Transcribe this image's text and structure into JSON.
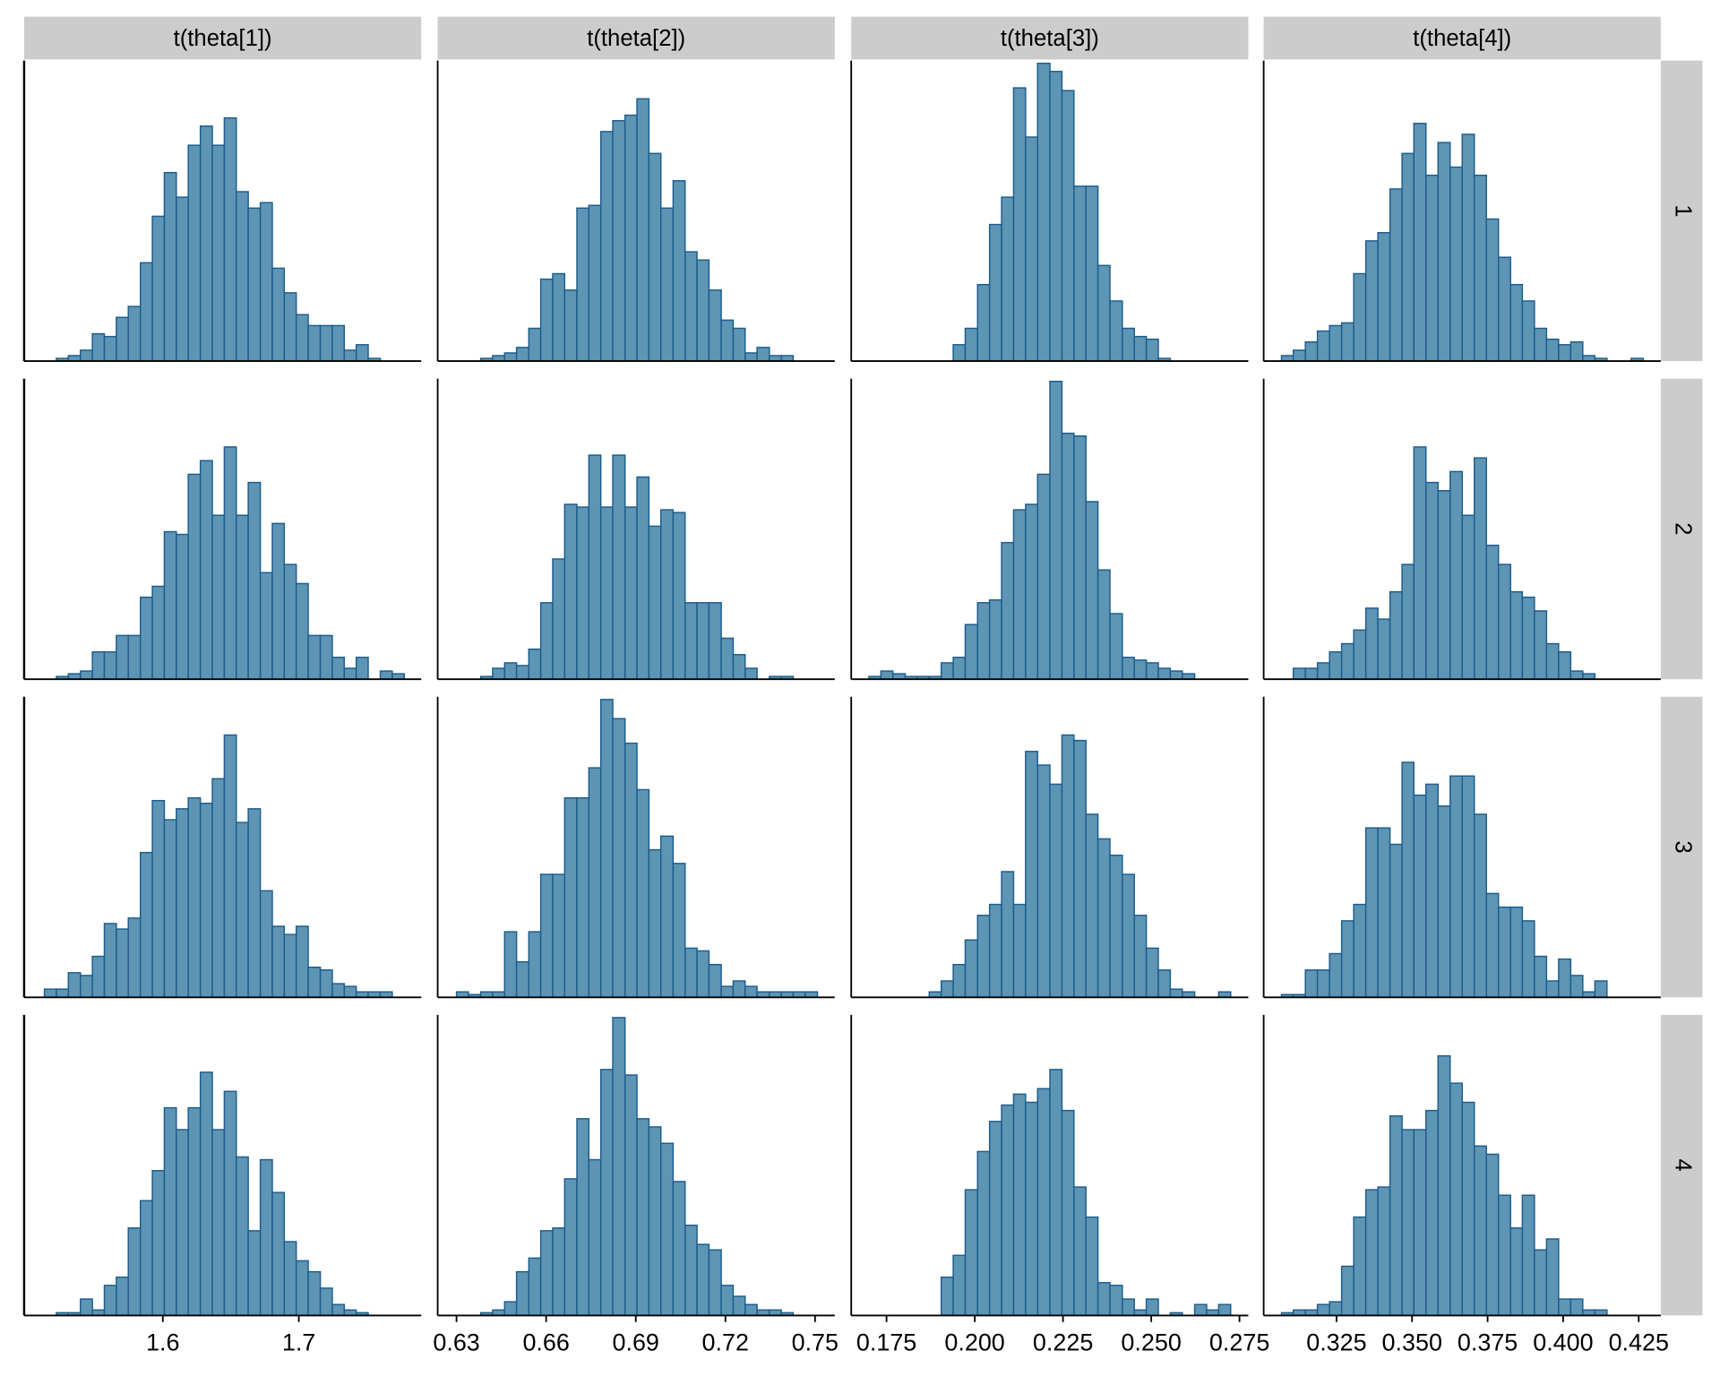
{
  "chart_data": {
    "type": "histogram",
    "fill": "#5e95b4",
    "edge": "#1d5d8d",
    "strip_color": "#cccccc",
    "columns": [
      {
        "title": "t(theta[1])",
        "xlim": [
          1.498,
          1.79
        ],
        "xticks": [
          1.6,
          1.7
        ],
        "bins": [
          1.5129,
          1.5217,
          1.5305,
          1.5394,
          1.5482,
          1.557,
          1.5658,
          1.5746,
          1.5835,
          1.5923,
          1.6011,
          1.6099,
          1.6187,
          1.6276,
          1.6364,
          1.6452,
          1.654,
          1.6628,
          1.6717,
          1.6805,
          1.6893,
          1.6981,
          1.7069,
          1.7158,
          1.7246,
          1.7334,
          1.7422,
          1.751,
          1.7599,
          1.7687,
          1.7775
        ]
      },
      {
        "title": "t(theta[2])",
        "xlim": [
          0.6237,
          0.7566
        ],
        "xticks": [
          0.63,
          0.66,
          0.69,
          0.72,
          0.75
        ],
        "bins": [
          0.63,
          0.634,
          0.6381,
          0.6421,
          0.6461,
          0.6501,
          0.6542,
          0.6582,
          0.6622,
          0.6662,
          0.6703,
          0.6743,
          0.6783,
          0.6823,
          0.6864,
          0.6904,
          0.6944,
          0.6984,
          0.7025,
          0.7065,
          0.7105,
          0.7145,
          0.7186,
          0.7226,
          0.7266,
          0.7306,
          0.7347,
          0.7387,
          0.7427,
          0.7467,
          0.7508
        ]
      },
      {
        "title": "t(theta[3])",
        "xlim": [
          0.165,
          0.2775
        ],
        "xticks": [
          0.175,
          {
            "value": 0.2,
            "label": "0.200"
          },
          0.225,
          {
            "value": 0.25,
            "label": "0.250"
          },
          0.275
        ],
        "bins": [
          0.17,
          0.1734,
          0.1768,
          0.1803,
          0.1837,
          0.1871,
          0.1905,
          0.1939,
          0.1973,
          0.2008,
          0.2042,
          0.2076,
          0.211,
          0.2144,
          0.2178,
          0.2213,
          0.2247,
          0.2281,
          0.2315,
          0.2349,
          0.2383,
          0.2418,
          0.2452,
          0.2486,
          0.252,
          0.2554,
          0.2588,
          0.2623,
          0.2657,
          0.2691,
          0.2725
        ]
      },
      {
        "title": "t(theta[4])",
        "xlim": [
          0.3009,
          0.4323
        ],
        "xticks": [
          0.325,
          {
            "value": 0.35,
            "label": "0.350"
          },
          0.375,
          {
            "value": 0.4,
            "label": "0.400"
          },
          0.425
        ],
        "bins": [
          0.3068,
          0.3107,
          0.3147,
          0.3187,
          0.3227,
          0.3267,
          0.3307,
          0.3347,
          0.3387,
          0.3427,
          0.3467,
          0.3506,
          0.3546,
          0.3586,
          0.3626,
          0.3666,
          0.3706,
          0.3746,
          0.3786,
          0.3826,
          0.3865,
          0.3905,
          0.3945,
          0.3985,
          0.4025,
          0.4065,
          0.4105,
          0.4145,
          0.4185,
          0.4225,
          0.4265
        ]
      }
    ],
    "rows": [
      {
        "label": "1",
        "ylim": [
          0,
          110
        ]
      },
      {
        "label": "2",
        "ylim": [
          0,
          110
        ]
      },
      {
        "label": "3",
        "ylim": [
          0,
          110
        ]
      },
      {
        "label": "4",
        "ylim": [
          0,
          110
        ]
      }
    ],
    "panels": [
      [
        [
          0,
          1,
          2,
          4,
          10,
          9,
          16,
          20,
          36,
          53,
          69,
          60,
          79,
          86,
          79,
          89,
          62,
          56,
          58,
          34,
          25,
          17,
          13,
          13,
          13,
          4,
          6,
          1,
          0,
          0
        ],
        [
          0,
          0,
          1,
          2,
          3,
          5,
          12,
          30,
          32,
          26,
          56,
          57,
          84,
          88,
          90,
          96,
          76,
          56,
          66,
          40,
          37,
          26,
          15,
          12,
          3,
          5,
          2,
          2,
          0,
          0
        ],
        [
          0,
          0,
          0,
          0,
          0,
          0,
          0,
          6,
          12,
          28,
          50,
          60,
          100,
          82,
          109,
          106,
          99,
          64,
          64,
          35,
          22,
          12,
          9,
          8,
          1,
          0,
          0,
          0,
          0,
          0
        ],
        [
          2,
          4,
          7,
          11,
          13,
          14,
          32,
          44,
          47,
          63,
          76,
          87,
          68,
          80,
          71,
          83,
          68,
          52,
          38,
          28,
          22,
          12,
          8,
          6,
          7,
          2,
          1,
          0,
          0,
          1
        ]
      ],
      [
        [
          0,
          1,
          2,
          3,
          10,
          10,
          16,
          16,
          30,
          34,
          54,
          53,
          75,
          80,
          60,
          85,
          60,
          72,
          39,
          57,
          42,
          35,
          16,
          16,
          8,
          4,
          8,
          0,
          3,
          2
        ],
        [
          0,
          0,
          1,
          4,
          6,
          5,
          11,
          28,
          44,
          64,
          63,
          82,
          63,
          82,
          63,
          74,
          56,
          62,
          61,
          28,
          28,
          28,
          15,
          9,
          4,
          0,
          1,
          1,
          0,
          0
        ],
        [
          1,
          3,
          2,
          1,
          1,
          1,
          6,
          8,
          20,
          28,
          29,
          50,
          62,
          64,
          75,
          109,
          90,
          89,
          65,
          40,
          24,
          8,
          7,
          6,
          4,
          3,
          2,
          0,
          0,
          0
        ],
        [
          0,
          4,
          4,
          6,
          10,
          13,
          18,
          26,
          22,
          32,
          42,
          85,
          72,
          69,
          76,
          60,
          81,
          49,
          42,
          32,
          30,
          25,
          13,
          10,
          3,
          2,
          0,
          0,
          0,
          0
        ]
      ],
      [
        [
          3,
          3,
          9,
          8,
          15,
          27,
          25,
          29,
          53,
          72,
          65,
          69,
          73,
          71,
          80,
          96,
          64,
          69,
          39,
          26,
          23,
          26,
          11,
          10,
          5,
          4,
          2,
          2,
          2,
          0
        ],
        [
          2,
          1,
          2,
          2,
          24,
          13,
          24,
          45,
          45,
          73,
          73,
          84,
          109,
          102,
          93,
          76,
          54,
          59,
          49,
          18,
          17,
          12,
          4,
          6,
          4,
          2,
          2,
          2,
          2,
          2
        ],
        [
          0,
          0,
          0,
          0,
          0,
          2,
          6,
          12,
          21,
          30,
          34,
          46,
          34,
          90,
          85,
          78,
          96,
          94,
          67,
          58,
          52,
          45,
          30,
          18,
          10,
          3,
          2,
          0,
          0,
          2
        ],
        [
          1,
          1,
          10,
          10,
          16,
          28,
          34,
          62,
          62,
          56,
          86,
          74,
          78,
          70,
          81,
          81,
          67,
          38,
          33,
          33,
          28,
          15,
          6,
          14,
          8,
          2,
          6,
          0,
          0,
          0
        ]
      ],
      [
        [
          0,
          1,
          1,
          6,
          2,
          11,
          14,
          32,
          42,
          53,
          76,
          68,
          76,
          89,
          68,
          82,
          58,
          31,
          57,
          45,
          27,
          20,
          16,
          10,
          4,
          2,
          1,
          0,
          0,
          0
        ],
        [
          0,
          0,
          1,
          2,
          5,
          16,
          21,
          31,
          32,
          50,
          72,
          57,
          90,
          109,
          88,
          72,
          69,
          63,
          49,
          33,
          26,
          24,
          11,
          7,
          4,
          2,
          2,
          1,
          0,
          0
        ],
        [
          0,
          0,
          0,
          0,
          0,
          0,
          14,
          22,
          46,
          60,
          71,
          77,
          81,
          78,
          83,
          90,
          75,
          47,
          36,
          12,
          11,
          6,
          2,
          6,
          0,
          1,
          0,
          4,
          2,
          4
        ],
        [
          1,
          2,
          2,
          4,
          5,
          18,
          36,
          46,
          47,
          73,
          68,
          68,
          75,
          95,
          85,
          78,
          62,
          59,
          44,
          32,
          44,
          24,
          28,
          6,
          6,
          2,
          2,
          0,
          0,
          0
        ]
      ]
    ]
  }
}
